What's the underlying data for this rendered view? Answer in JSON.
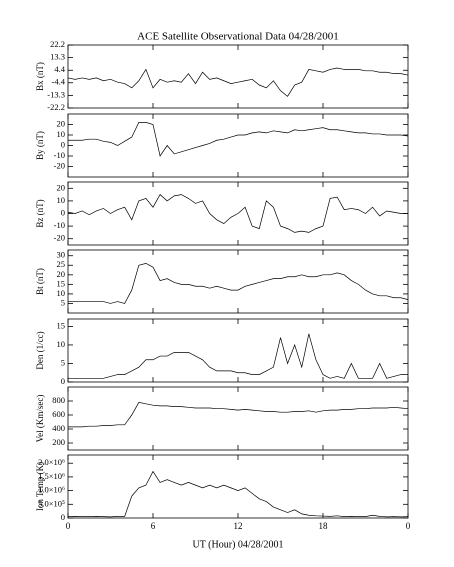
{
  "chart_data": {
    "type": "line",
    "title": "ACE Satellite Observational Data   04/28/2001",
    "x_label": "UT (Hour)   04/28/2001",
    "xlim": [
      0,
      24
    ],
    "xticks": [
      0,
      6,
      12,
      18,
      {
        "value": 24,
        "label": "0"
      }
    ],
    "x": [
      0,
      0.5,
      1,
      1.5,
      2,
      2.5,
      3,
      3.5,
      4,
      4.5,
      5,
      5.5,
      6,
      6.5,
      7,
      7.5,
      8,
      8.5,
      9,
      9.5,
      10,
      10.5,
      11,
      11.5,
      12,
      12.5,
      13,
      13.5,
      14,
      14.5,
      15,
      15.5,
      16,
      16.5,
      17,
      17.5,
      18,
      18.5,
      19,
      19.5,
      20,
      20.5,
      21,
      21.5,
      22,
      22.5,
      23,
      23.5,
      24
    ],
    "color": "#000000",
    "panels": [
      {
        "ylabel": "Bx (nT)",
        "ylim": [
          -22.2,
          22.2
        ],
        "yticks": [
          -22.2,
          -13.3,
          -4.4,
          4.4,
          13.3,
          22.2
        ],
        "values": [
          -1,
          -2,
          -1,
          -2,
          -1,
          -3,
          -2,
          -4,
          -5,
          -8,
          -3,
          5,
          -8,
          -2,
          -4,
          -3,
          -4,
          2,
          -5,
          3,
          -2,
          -1,
          -3,
          -5,
          -4,
          -3,
          -2,
          -6,
          -8,
          -3,
          -10,
          -14,
          -6,
          -4,
          5,
          4,
          3,
          5,
          6,
          5,
          5,
          5,
          4,
          4,
          3,
          3,
          2,
          2,
          1
        ]
      },
      {
        "ylabel": "By (nT)",
        "ylim": [
          -30,
          30
        ],
        "yticks": [
          -20,
          -10,
          0,
          10,
          20
        ],
        "values": [
          5,
          5,
          5,
          6,
          6,
          4,
          3,
          0,
          4,
          8,
          22,
          22,
          20,
          -10,
          0,
          -8,
          -6,
          -4,
          -2,
          0,
          2,
          5,
          6,
          8,
          10,
          10,
          12,
          13,
          12,
          14,
          13,
          12,
          15,
          14,
          15,
          16,
          17,
          15,
          15,
          14,
          13,
          12,
          12,
          11,
          11,
          10,
          10,
          10,
          9
        ]
      },
      {
        "ylabel": "Bz (nT)",
        "ylim": [
          -25,
          25
        ],
        "yticks": [
          -20,
          -10,
          0,
          10,
          20
        ],
        "values": [
          1,
          0,
          2,
          -1,
          2,
          4,
          0,
          3,
          5,
          -5,
          10,
          12,
          5,
          15,
          10,
          14,
          15,
          12,
          8,
          10,
          0,
          -5,
          -8,
          -3,
          0,
          5,
          -10,
          -12,
          10,
          5,
          -10,
          -12,
          -15,
          -14,
          -15,
          -12,
          -10,
          12,
          13,
          3,
          4,
          3,
          0,
          5,
          -2,
          2,
          1,
          0,
          0
        ]
      },
      {
        "ylabel": "Bt (nT)",
        "ylim": [
          0,
          33
        ],
        "yticks": [
          5,
          10,
          15,
          20,
          25,
          30
        ],
        "values": [
          6,
          6,
          6,
          6,
          6,
          6,
          5,
          6,
          5,
          12,
          25,
          26,
          24,
          17,
          18,
          16,
          15,
          15,
          14,
          14,
          13,
          14,
          13,
          12,
          12,
          14,
          15,
          16,
          17,
          18,
          18,
          19,
          19,
          20,
          19,
          19,
          20,
          20,
          21,
          20,
          17,
          15,
          12,
          10,
          9,
          9,
          8,
          8,
          7
        ]
      },
      {
        "ylabel": "Den (1/cc)",
        "ylim": [
          0,
          17
        ],
        "yticks": [
          0,
          5,
          10,
          15
        ],
        "values": [
          1,
          1,
          1,
          1,
          1,
          1,
          1.5,
          2,
          2,
          3,
          4,
          6,
          6,
          7,
          7,
          8,
          8,
          8,
          7,
          6,
          4,
          3,
          3,
          3,
          2.5,
          2.5,
          2,
          2,
          3,
          4,
          12,
          5,
          10,
          4,
          13,
          6,
          2,
          1,
          1.5,
          1,
          5,
          1,
          1,
          1,
          5,
          1,
          1.5,
          2,
          2
        ]
      },
      {
        "ylabel": "Vel (Km/sec)",
        "ylim": [
          100,
          1000
        ],
        "yticks": [
          200,
          400,
          600,
          800
        ],
        "values": [
          430,
          430,
          430,
          440,
          440,
          450,
          450,
          460,
          460,
          600,
          780,
          760,
          740,
          730,
          730,
          720,
          720,
          710,
          700,
          700,
          700,
          690,
          690,
          680,
          670,
          680,
          670,
          660,
          650,
          650,
          640,
          640,
          650,
          650,
          660,
          640,
          660,
          670,
          670,
          680,
          680,
          690,
          690,
          700,
          700,
          700,
          710,
          700,
          690
        ]
      },
      {
        "ylabel": "Ion Temp (K)",
        "ylim": [
          0,
          2300000
        ],
        "yticks": [
          0,
          {
            "value": 500000,
            "label": "5.0×10⁵"
          },
          {
            "value": 1000000,
            "label": "1.0×10⁶"
          },
          {
            "value": 1500000,
            "label": "1.5×10⁶"
          },
          {
            "value": 2000000,
            "label": "2.0×10⁶"
          }
        ],
        "values": [
          50000,
          60000,
          50000,
          50000,
          60000,
          50000,
          40000,
          60000,
          60000,
          800000,
          1100000,
          1200000,
          1700000,
          1300000,
          1400000,
          1300000,
          1200000,
          1300000,
          1200000,
          1100000,
          1200000,
          1100000,
          1200000,
          1100000,
          1000000,
          1100000,
          900000,
          700000,
          600000,
          400000,
          300000,
          200000,
          300000,
          150000,
          100000,
          80000,
          70000,
          60000,
          80000,
          50000,
          60000,
          50000,
          50000,
          100000,
          60000,
          40000,
          50000,
          40000,
          50000
        ]
      }
    ]
  }
}
